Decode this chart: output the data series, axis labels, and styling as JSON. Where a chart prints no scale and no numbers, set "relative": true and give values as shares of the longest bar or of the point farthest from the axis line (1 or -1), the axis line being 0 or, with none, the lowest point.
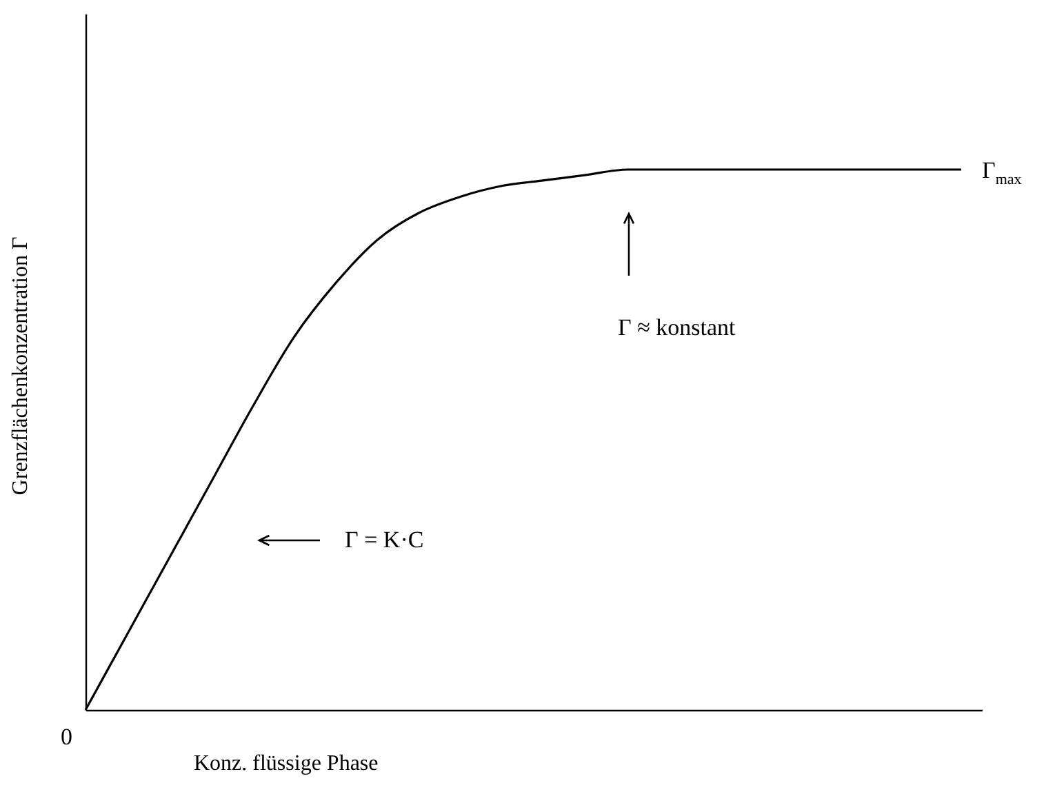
{
  "chart_data": {
    "type": "line",
    "relative": true,
    "xlabel": "Konz. flüssige Phase",
    "ylabel": "Grenzflächenkonzentration Γ",
    "categories": [
      null,
      null,
      null,
      null,
      null,
      null,
      null,
      null,
      null,
      null,
      null,
      null,
      null,
      null,
      null,
      null,
      null,
      null,
      null,
      null,
      null,
      null
    ],
    "series": [
      {
        "color": "#000000",
        "values": [
          0,
          0.14,
          0.28,
          0.42,
          0.56,
          0.69,
          0.79,
          0.87,
          0.92,
          0.95,
          0.97,
          0.98,
          0.99,
          1,
          1,
          1,
          1,
          1,
          1,
          1,
          1,
          1
        ]
      }
    ],
    "annotations": [
      "0",
      "Γ$_{max}$",
      "Γ ≈ konstant",
      "Γ = K·C"
    ],
    "grid": false,
    "marker": "none"
  }
}
